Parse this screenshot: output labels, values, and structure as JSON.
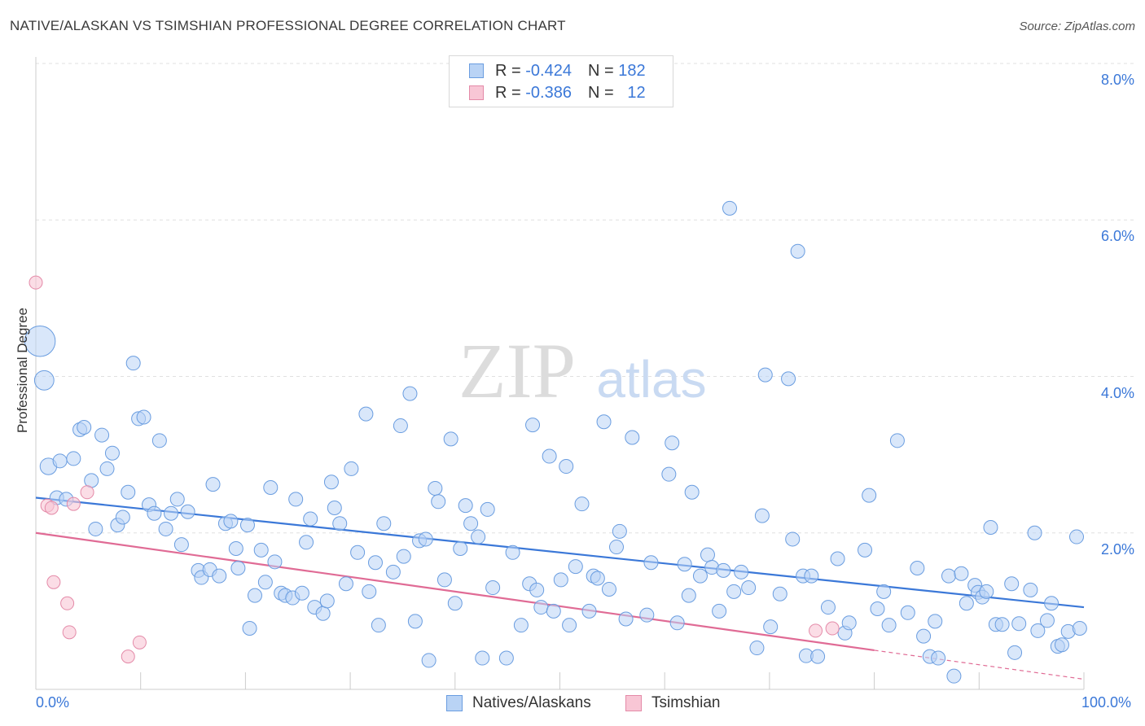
{
  "title": "NATIVE/ALASKAN VS TSIMSHIAN PROFESSIONAL DEGREE CORRELATION CHART",
  "source": "Source: ZipAtlas.com",
  "watermark": {
    "zip": "ZIP",
    "atlas": "atlas"
  },
  "legend": {
    "r_label": "R =",
    "n_label": "N =",
    "rows": [
      {
        "r": "-0.424",
        "n": "182",
        "fill": "#b9d3f5",
        "stroke": "#6a9de0"
      },
      {
        "r": "-0.386",
        "n": "12",
        "fill": "#f8c6d5",
        "stroke": "#e48aa8"
      }
    ]
  },
  "bottom_legend": [
    {
      "label": "Natives/Alaskans",
      "fill": "#b9d3f5",
      "stroke": "#6a9de0"
    },
    {
      "label": "Tsimshian",
      "fill": "#f8c6d5",
      "stroke": "#e48aa8"
    }
  ],
  "chart_data": {
    "type": "scatter",
    "title": "NATIVE/ALASKAN VS TSIMSHIAN PROFESSIONAL DEGREE CORRELATION CHART",
    "xlabel": "",
    "ylabel": "Professional Degree",
    "xlim": [
      0,
      100
    ],
    "ylim": [
      0,
      8.0
    ],
    "y_ticks": [
      "8.0%",
      "6.0%",
      "4.0%",
      "2.0%"
    ],
    "x_tick_labels": [
      "0.0%",
      "100.0%"
    ],
    "grid": true,
    "legend_position": "top-center",
    "colors": {
      "natives": "#3b78d8",
      "tsimshian": "#e06b95"
    },
    "series": [
      {
        "name": "Natives/Alaskans",
        "trend": [
          [
            0,
            2.45
          ],
          [
            100,
            1.05
          ]
        ],
        "points": [
          [
            0.4,
            4.45,
            2.2
          ],
          [
            0.8,
            3.95,
            1.4
          ],
          [
            1.2,
            2.85,
            1.2
          ],
          [
            2,
            2.45,
            1
          ],
          [
            2.3,
            2.92,
            1
          ],
          [
            2.9,
            2.43,
            1
          ],
          [
            3.6,
            2.95,
            1
          ],
          [
            4.2,
            3.32,
            1
          ],
          [
            4.6,
            3.35,
            1
          ],
          [
            5.3,
            2.67,
            1
          ],
          [
            5.7,
            2.05,
            1
          ],
          [
            6.3,
            3.25,
            1
          ],
          [
            6.8,
            2.82,
            1
          ],
          [
            7.3,
            3.02,
            1
          ],
          [
            7.8,
            2.1,
            1
          ],
          [
            8.3,
            2.2,
            1
          ],
          [
            8.8,
            2.52,
            1
          ],
          [
            9.3,
            4.17,
            1
          ],
          [
            9.8,
            3.46,
            1
          ],
          [
            10.3,
            3.48,
            1
          ],
          [
            10.8,
            2.36,
            1
          ],
          [
            11.3,
            2.25,
            1
          ],
          [
            11.8,
            3.18,
            1
          ],
          [
            12.4,
            2.05,
            1
          ],
          [
            12.9,
            2.25,
            1
          ],
          [
            13.5,
            2.43,
            1
          ],
          [
            13.9,
            1.85,
            1
          ],
          [
            14.5,
            2.27,
            1
          ],
          [
            15.5,
            1.52,
            1
          ],
          [
            15.8,
            1.43,
            1
          ],
          [
            16.6,
            1.53,
            1
          ],
          [
            16.9,
            2.62,
            1
          ],
          [
            17.5,
            1.45,
            1
          ],
          [
            18.1,
            2.12,
            1
          ],
          [
            18.6,
            2.15,
            1
          ],
          [
            19.1,
            1.8,
            1
          ],
          [
            19.3,
            1.55,
            1
          ],
          [
            20.2,
            2.1,
            1
          ],
          [
            20.4,
            0.78,
            1
          ],
          [
            20.9,
            1.2,
            1
          ],
          [
            21.5,
            1.78,
            1
          ],
          [
            21.9,
            1.37,
            1
          ],
          [
            22.4,
            2.58,
            1
          ],
          [
            22.8,
            1.63,
            1
          ],
          [
            23.4,
            1.23,
            1
          ],
          [
            23.8,
            1.2,
            1
          ],
          [
            24.5,
            1.17,
            1
          ],
          [
            24.8,
            2.43,
            1
          ],
          [
            25.4,
            1.23,
            1
          ],
          [
            25.8,
            1.88,
            1
          ],
          [
            26.2,
            2.18,
            1
          ],
          [
            26.6,
            1.05,
            1
          ],
          [
            27.4,
            0.97,
            1
          ],
          [
            27.8,
            1.13,
            1
          ],
          [
            28.2,
            2.65,
            1
          ],
          [
            28.5,
            2.32,
            1
          ],
          [
            29,
            2.12,
            1
          ],
          [
            29.6,
            1.35,
            1
          ],
          [
            30.1,
            2.82,
            1
          ],
          [
            30.7,
            1.75,
            1
          ],
          [
            31.5,
            3.52,
            1
          ],
          [
            31.8,
            1.25,
            1
          ],
          [
            32.4,
            1.62,
            1
          ],
          [
            32.7,
            0.82,
            1
          ],
          [
            33.2,
            2.12,
            1
          ],
          [
            34.1,
            1.5,
            1
          ],
          [
            34.8,
            3.37,
            1
          ],
          [
            35.1,
            1.7,
            1
          ],
          [
            35.7,
            3.78,
            1
          ],
          [
            36.2,
            0.87,
            1
          ],
          [
            36.6,
            1.9,
            1
          ],
          [
            37.2,
            1.92,
            1
          ],
          [
            37.5,
            0.37,
            1
          ],
          [
            38.1,
            2.57,
            1
          ],
          [
            38.4,
            2.4,
            1
          ],
          [
            39,
            1.4,
            1
          ],
          [
            39.6,
            3.2,
            1
          ],
          [
            40,
            1.1,
            1
          ],
          [
            40.5,
            1.8,
            1
          ],
          [
            41,
            2.35,
            1
          ],
          [
            41.5,
            2.12,
            1
          ],
          [
            42.2,
            1.95,
            1
          ],
          [
            42.6,
            0.4,
            1
          ],
          [
            43.1,
            2.3,
            1
          ],
          [
            43.6,
            1.3,
            1
          ],
          [
            44.9,
            0.4,
            1
          ],
          [
            45.5,
            1.75,
            1
          ],
          [
            46.3,
            0.82,
            1
          ],
          [
            47.1,
            1.35,
            1
          ],
          [
            47.4,
            3.38,
            1
          ],
          [
            47.8,
            1.27,
            1
          ],
          [
            48.2,
            1.05,
            1
          ],
          [
            49,
            2.98,
            1
          ],
          [
            49.4,
            1.0,
            1
          ],
          [
            50.1,
            1.4,
            1
          ],
          [
            50.6,
            2.85,
            1
          ],
          [
            50.9,
            0.82,
            1
          ],
          [
            51.5,
            1.57,
            1
          ],
          [
            52.1,
            2.37,
            1
          ],
          [
            52.8,
            1.0,
            1
          ],
          [
            53.2,
            1.45,
            1
          ],
          [
            53.6,
            1.42,
            1
          ],
          [
            54.2,
            3.42,
            1
          ],
          [
            54.7,
            1.28,
            1
          ],
          [
            55.4,
            1.82,
            1
          ],
          [
            55.7,
            2.02,
            1
          ],
          [
            56.3,
            0.9,
            1
          ],
          [
            56.9,
            3.22,
            1
          ],
          [
            58.3,
            0.95,
            1
          ],
          [
            58.7,
            1.62,
            1
          ],
          [
            60.4,
            2.75,
            1
          ],
          [
            60.7,
            3.15,
            1
          ],
          [
            61.2,
            0.85,
            1
          ],
          [
            61.9,
            1.6,
            1
          ],
          [
            62.3,
            1.2,
            1
          ],
          [
            62.6,
            2.52,
            1
          ],
          [
            63.4,
            1.45,
            1
          ],
          [
            64.1,
            1.72,
            1
          ],
          [
            64.5,
            1.56,
            1
          ],
          [
            65.2,
            1.0,
            1
          ],
          [
            65.6,
            1.52,
            1
          ],
          [
            66.2,
            6.15,
            1
          ],
          [
            66.6,
            1.25,
            1
          ],
          [
            67.3,
            1.5,
            1
          ],
          [
            68,
            1.3,
            1
          ],
          [
            68.8,
            0.53,
            1
          ],
          [
            69.3,
            2.22,
            1
          ],
          [
            69.6,
            4.02,
            1
          ],
          [
            70.1,
            0.8,
            1
          ],
          [
            71,
            1.22,
            1
          ],
          [
            71.8,
            3.97,
            1
          ],
          [
            72.2,
            1.92,
            1
          ],
          [
            72.7,
            5.6,
            1
          ],
          [
            73.2,
            1.45,
            1
          ],
          [
            73.5,
            0.43,
            1
          ],
          [
            74,
            1.45,
            1
          ],
          [
            74.6,
            0.42,
            1
          ],
          [
            75.6,
            1.05,
            1
          ],
          [
            76.5,
            1.67,
            1
          ],
          [
            77.2,
            0.72,
            1
          ],
          [
            77.6,
            0.85,
            1
          ],
          [
            79.1,
            1.78,
            1
          ],
          [
            79.5,
            2.48,
            1
          ],
          [
            80.3,
            1.03,
            1
          ],
          [
            80.9,
            1.25,
            1
          ],
          [
            81.4,
            0.82,
            1
          ],
          [
            82.2,
            3.18,
            1
          ],
          [
            83.2,
            0.98,
            1
          ],
          [
            84.1,
            1.55,
            1
          ],
          [
            84.7,
            0.68,
            1
          ],
          [
            85.3,
            0.42,
            1
          ],
          [
            85.8,
            0.87,
            1
          ],
          [
            86.1,
            0.4,
            1
          ],
          [
            87.6,
            0.17,
            1
          ],
          [
            87.1,
            1.45,
            1
          ],
          [
            88.3,
            1.48,
            1
          ],
          [
            88.8,
            1.1,
            1
          ],
          [
            89.6,
            1.33,
            1
          ],
          [
            89.9,
            1.24,
            1
          ],
          [
            90.3,
            1.18,
            1
          ],
          [
            90.7,
            1.25,
            1
          ],
          [
            91.1,
            2.07,
            1
          ],
          [
            91.6,
            0.83,
            1
          ],
          [
            92.2,
            0.83,
            1
          ],
          [
            93.1,
            1.35,
            1
          ],
          [
            93.4,
            0.47,
            1
          ],
          [
            93.8,
            0.84,
            1
          ],
          [
            94.9,
            1.27,
            1
          ],
          [
            95.3,
            2.0,
            1
          ],
          [
            95.6,
            0.75,
            1
          ],
          [
            96.5,
            0.88,
            1
          ],
          [
            96.9,
            1.1,
            1
          ],
          [
            97.5,
            0.55,
            1
          ],
          [
            97.9,
            0.57,
            1
          ],
          [
            98.5,
            0.74,
            1
          ],
          [
            99.3,
            1.95,
            1
          ],
          [
            99.6,
            0.78,
            1
          ]
        ]
      },
      {
        "name": "Tsimshian",
        "trend_solid": [
          [
            0,
            2.0
          ],
          [
            80,
            0.5
          ]
        ],
        "trend_dashed": [
          [
            80,
            0.5
          ],
          [
            100,
            0.13
          ]
        ],
        "points": [
          [
            0,
            5.2
          ],
          [
            1.1,
            2.35
          ],
          [
            1.5,
            2.32
          ],
          [
            1.7,
            1.37
          ],
          [
            3,
            1.1
          ],
          [
            3.2,
            0.73
          ],
          [
            3.6,
            2.37
          ],
          [
            4.9,
            2.52
          ],
          [
            8.8,
            0.42
          ],
          [
            9.9,
            0.6
          ],
          [
            74.4,
            0.75
          ],
          [
            76,
            0.78
          ]
        ]
      }
    ]
  }
}
